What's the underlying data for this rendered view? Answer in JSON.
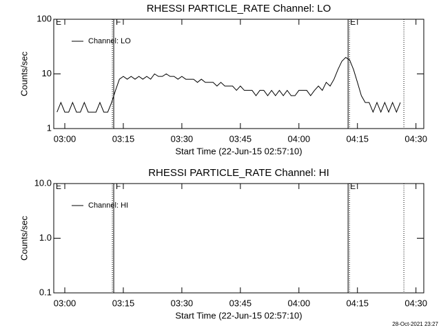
{
  "chart_data": [
    {
      "type": "line",
      "title": "RHESSI PARTICLE_RATE Channel: LO",
      "xlabel": "Start Time (22-Jun-15 02:57:10)",
      "ylabel": "Counts/sec",
      "log_y": true,
      "legend": "upper left",
      "xlim": [
        -2.83,
        92
      ],
      "ylim": [
        1,
        100
      ],
      "xticks": [
        {
          "value": 0,
          "label": "03:00"
        },
        {
          "value": 15,
          "label": "03:15"
        },
        {
          "value": 30,
          "label": "03:30"
        },
        {
          "value": 45,
          "label": "03:45"
        },
        {
          "value": 60,
          "label": "04:00"
        },
        {
          "value": 75,
          "label": "04:15"
        },
        {
          "value": 90,
          "label": "04:30"
        }
      ],
      "yticks": [
        1,
        10,
        100
      ],
      "x": [
        -2,
        -1,
        0,
        1,
        2,
        3,
        4,
        5,
        6,
        7,
        8,
        9,
        10,
        11,
        12,
        13,
        14,
        15,
        16,
        17,
        18,
        19,
        20,
        21,
        22,
        23,
        24,
        25,
        26,
        27,
        28,
        29,
        30,
        31,
        32,
        33,
        34,
        35,
        36,
        37,
        38,
        39,
        40,
        41,
        42,
        43,
        44,
        45,
        46,
        47,
        48,
        49,
        50,
        51,
        52,
        53,
        54,
        55,
        56,
        57,
        58,
        59,
        60,
        61,
        62,
        63,
        64,
        65,
        66,
        67,
        68,
        69,
        70,
        71,
        72,
        73,
        74,
        75,
        76,
        77,
        78,
        79,
        80,
        81,
        82,
        83,
        84,
        85,
        86
      ],
      "series": [
        {
          "name": "Channel: LO",
          "color": "#000000",
          "values": [
            2,
            3,
            2,
            2,
            3,
            2,
            2,
            3,
            2,
            2,
            2,
            3,
            2,
            2,
            3,
            5,
            8,
            9,
            8,
            9,
            8,
            9,
            8,
            9,
            8,
            10,
            9,
            9,
            10,
            9,
            9,
            8,
            9,
            8,
            8,
            8,
            7,
            8,
            7,
            7,
            7,
            6,
            7,
            6,
            6,
            6,
            5,
            6,
            5,
            5,
            5,
            4,
            5,
            5,
            4,
            5,
            4,
            5,
            4,
            5,
            4,
            4,
            5,
            5,
            5,
            4,
            5,
            6,
            5,
            7,
            6,
            8,
            12,
            17,
            20,
            18,
            12,
            7,
            4,
            3,
            3,
            2,
            3,
            2,
            3,
            2,
            3,
            2,
            3
          ]
        }
      ],
      "vlines": [
        {
          "x": 12.19,
          "style": "dotted"
        },
        {
          "x": 12.54,
          "style": "solid"
        },
        {
          "x": 72.6,
          "style": "solid"
        },
        {
          "x": 72.97,
          "style": "dotted"
        },
        {
          "x": 86.9,
          "style": "dotted"
        }
      ],
      "annotations": [
        {
          "text": "E",
          "x": -2.83
        },
        {
          "text": "F",
          "x": 12.54
        },
        {
          "text": "E",
          "x": 72.6
        }
      ]
    },
    {
      "type": "line",
      "title": "RHESSI PARTICLE_RATE Channel: HI",
      "xlabel": "Start Time (22-Jun-15 02:57:10)",
      "ylabel": "Counts/sec",
      "log_y": true,
      "legend": "upper left",
      "xlim": [
        -2.83,
        92
      ],
      "ylim": [
        0.1,
        10
      ],
      "xticks": [
        {
          "value": 0,
          "label": "03:00"
        },
        {
          "value": 15,
          "label": "03:15"
        },
        {
          "value": 30,
          "label": "03:30"
        },
        {
          "value": 45,
          "label": "03:45"
        },
        {
          "value": 60,
          "label": "04:00"
        },
        {
          "value": 75,
          "label": "04:15"
        },
        {
          "value": 90,
          "label": "04:30"
        }
      ],
      "yticks": [
        {
          "value": 0.1,
          "label": "0.1"
        },
        {
          "value": 1,
          "label": "1.0"
        },
        {
          "value": 10,
          "label": "10.0"
        }
      ],
      "x": [],
      "series": [
        {
          "name": "Channel: HI",
          "color": "#000000",
          "values": []
        }
      ],
      "vlines": [
        {
          "x": 12.19,
          "style": "dotted"
        },
        {
          "x": 12.54,
          "style": "solid"
        },
        {
          "x": 72.6,
          "style": "solid"
        },
        {
          "x": 72.97,
          "style": "dotted"
        },
        {
          "x": 86.9,
          "style": "dotted"
        }
      ],
      "annotations": [
        {
          "text": "E",
          "x": -2.83
        },
        {
          "text": "F",
          "x": 12.54
        },
        {
          "text": "E",
          "x": 72.6
        }
      ]
    }
  ],
  "footer": "28-Oct-2021 23:27"
}
